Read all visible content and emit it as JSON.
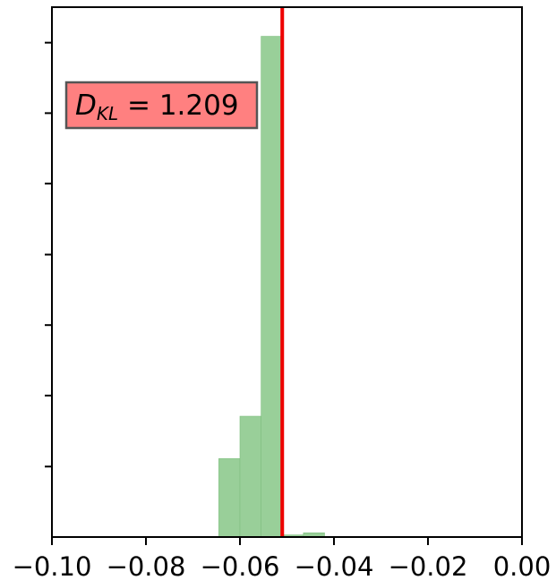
{
  "chart_data": {
    "type": "bar",
    "title": "",
    "xlabel": "",
    "ylabel": "",
    "xlim": [
      -0.1,
      0.0
    ],
    "ylim": [
      0,
      1.0
    ],
    "x_ticks": [
      -0.1,
      -0.08,
      -0.06,
      -0.04,
      -0.02,
      0.0
    ],
    "x_tick_labels": [
      "−0.10",
      "−0.08",
      "−0.06",
      "−0.04",
      "−0.02",
      "0.00"
    ],
    "y_ticks": [
      0.133,
      0.267,
      0.4,
      0.533,
      0.667,
      0.8,
      0.933
    ],
    "y_tick_labels": [],
    "bins": [
      {
        "x0": -0.0645,
        "x1": -0.06,
        "value": 0.148
      },
      {
        "x0": -0.06,
        "x1": -0.0555,
        "value": 0.228
      },
      {
        "x0": -0.0555,
        "x1": -0.051,
        "value": 0.945
      },
      {
        "x0": -0.051,
        "x1": -0.0465,
        "value": 0.004
      },
      {
        "x0": -0.0465,
        "x1": -0.042,
        "value": 0.008
      }
    ],
    "bar_color": "#99cf99",
    "bar_edge_color": "#7fbf7f",
    "vline": {
      "x": -0.051,
      "color": "#ee0000"
    },
    "annotation": {
      "symbol": "D",
      "subscript": "KL",
      "rest": " = 1.209",
      "box_color": "#ff8080",
      "box_edge_color": "#555555",
      "placement": "upper-left"
    },
    "grid": false,
    "legend": "none"
  }
}
